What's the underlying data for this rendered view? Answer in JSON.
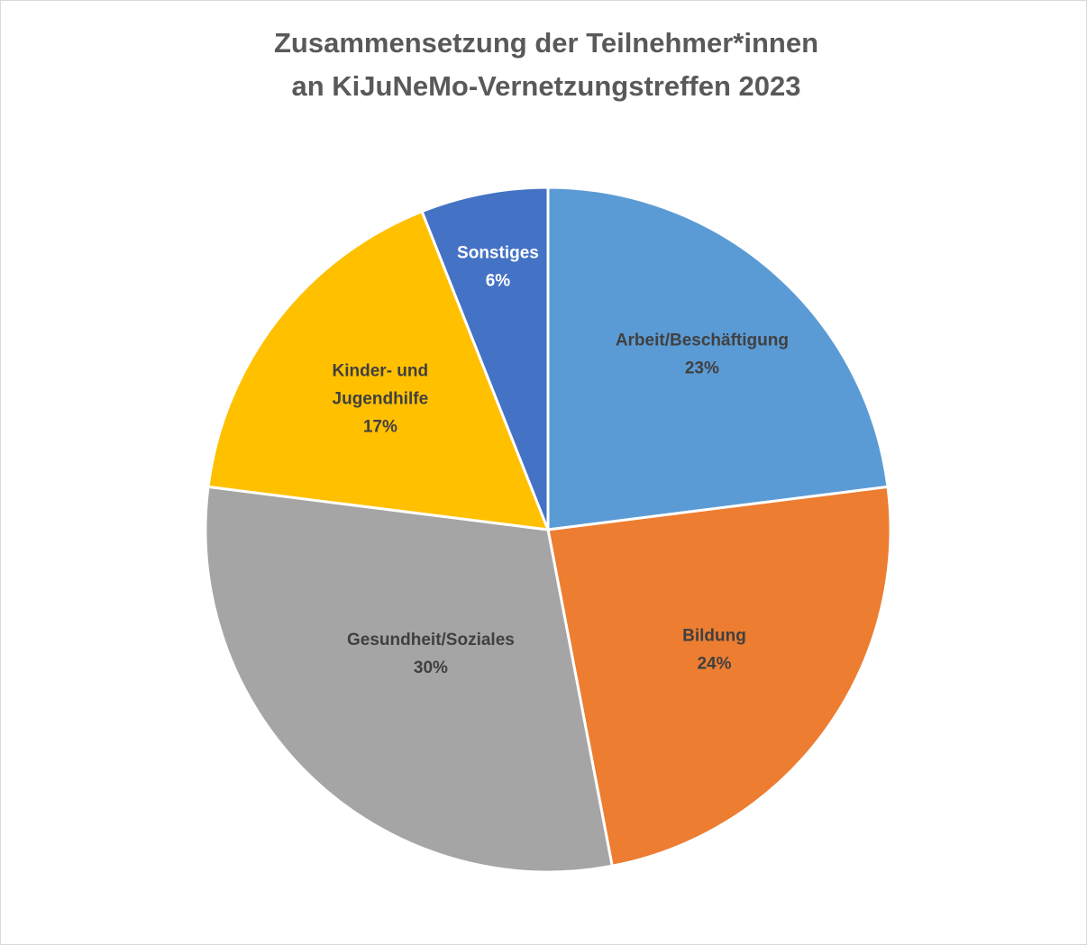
{
  "chart_data": {
    "type": "pie",
    "title": [
      "Zusammensetzung der Teilnehmer*innen",
      "an KiJuNeMo-Vernetzungstreffen 2023"
    ],
    "categories": [
      "Arbeit/Beschäftigung",
      "Bildung",
      "Gesundheit/Soziales",
      "Kinder- und Jugendhilfe",
      "Sonstiges"
    ],
    "values": [
      23,
      24,
      30,
      17,
      6
    ],
    "value_labels": [
      "23%",
      "24%",
      "30%",
      "17%",
      "6%"
    ],
    "colors": [
      "#5b9bd5",
      "#ed7d31",
      "#a5a5a5",
      "#ffc000",
      "#4472c4"
    ]
  }
}
